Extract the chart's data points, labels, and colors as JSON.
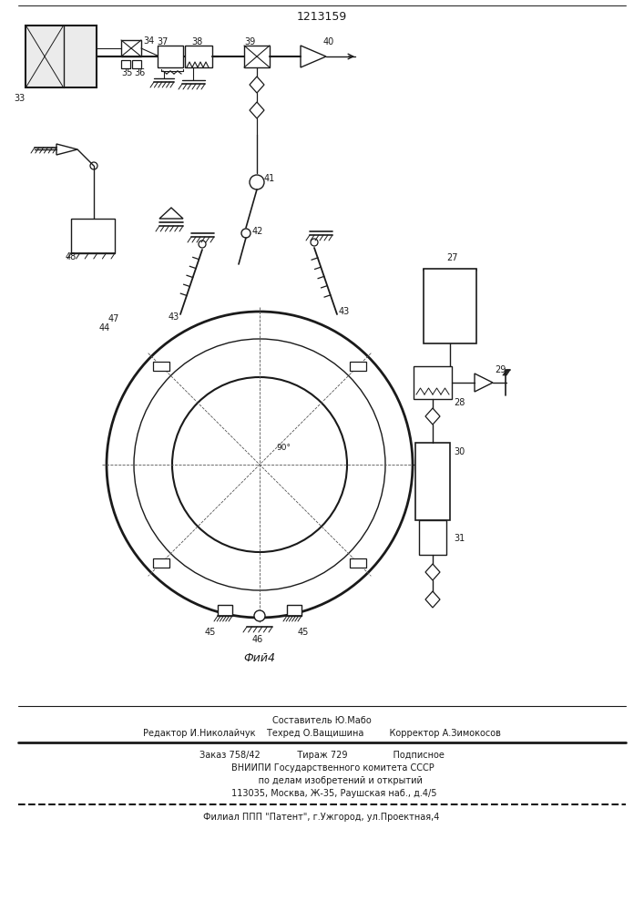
{
  "title": "1213159",
  "fig_label": "Фий4",
  "bg_color": "#ffffff",
  "line_color": "#1a1a1a",
  "footer_lines": [
    "Составитель Ю.Мабо",
    "Редактор И.Николайчук    Техред О.Ващишина         Корректор А.Зимокосов",
    "Заказ 758/42             Тираж 729                Подписное",
    "        ВНИИПИ Государственного комитета СССР",
    "             по делам изобретений и открытий",
    "         113035, Москва, Ж-35, Раушская наб., д.4/5",
    "Филиал ППП \"Патент\", г.Ужгород, ул.Проектная,4"
  ]
}
